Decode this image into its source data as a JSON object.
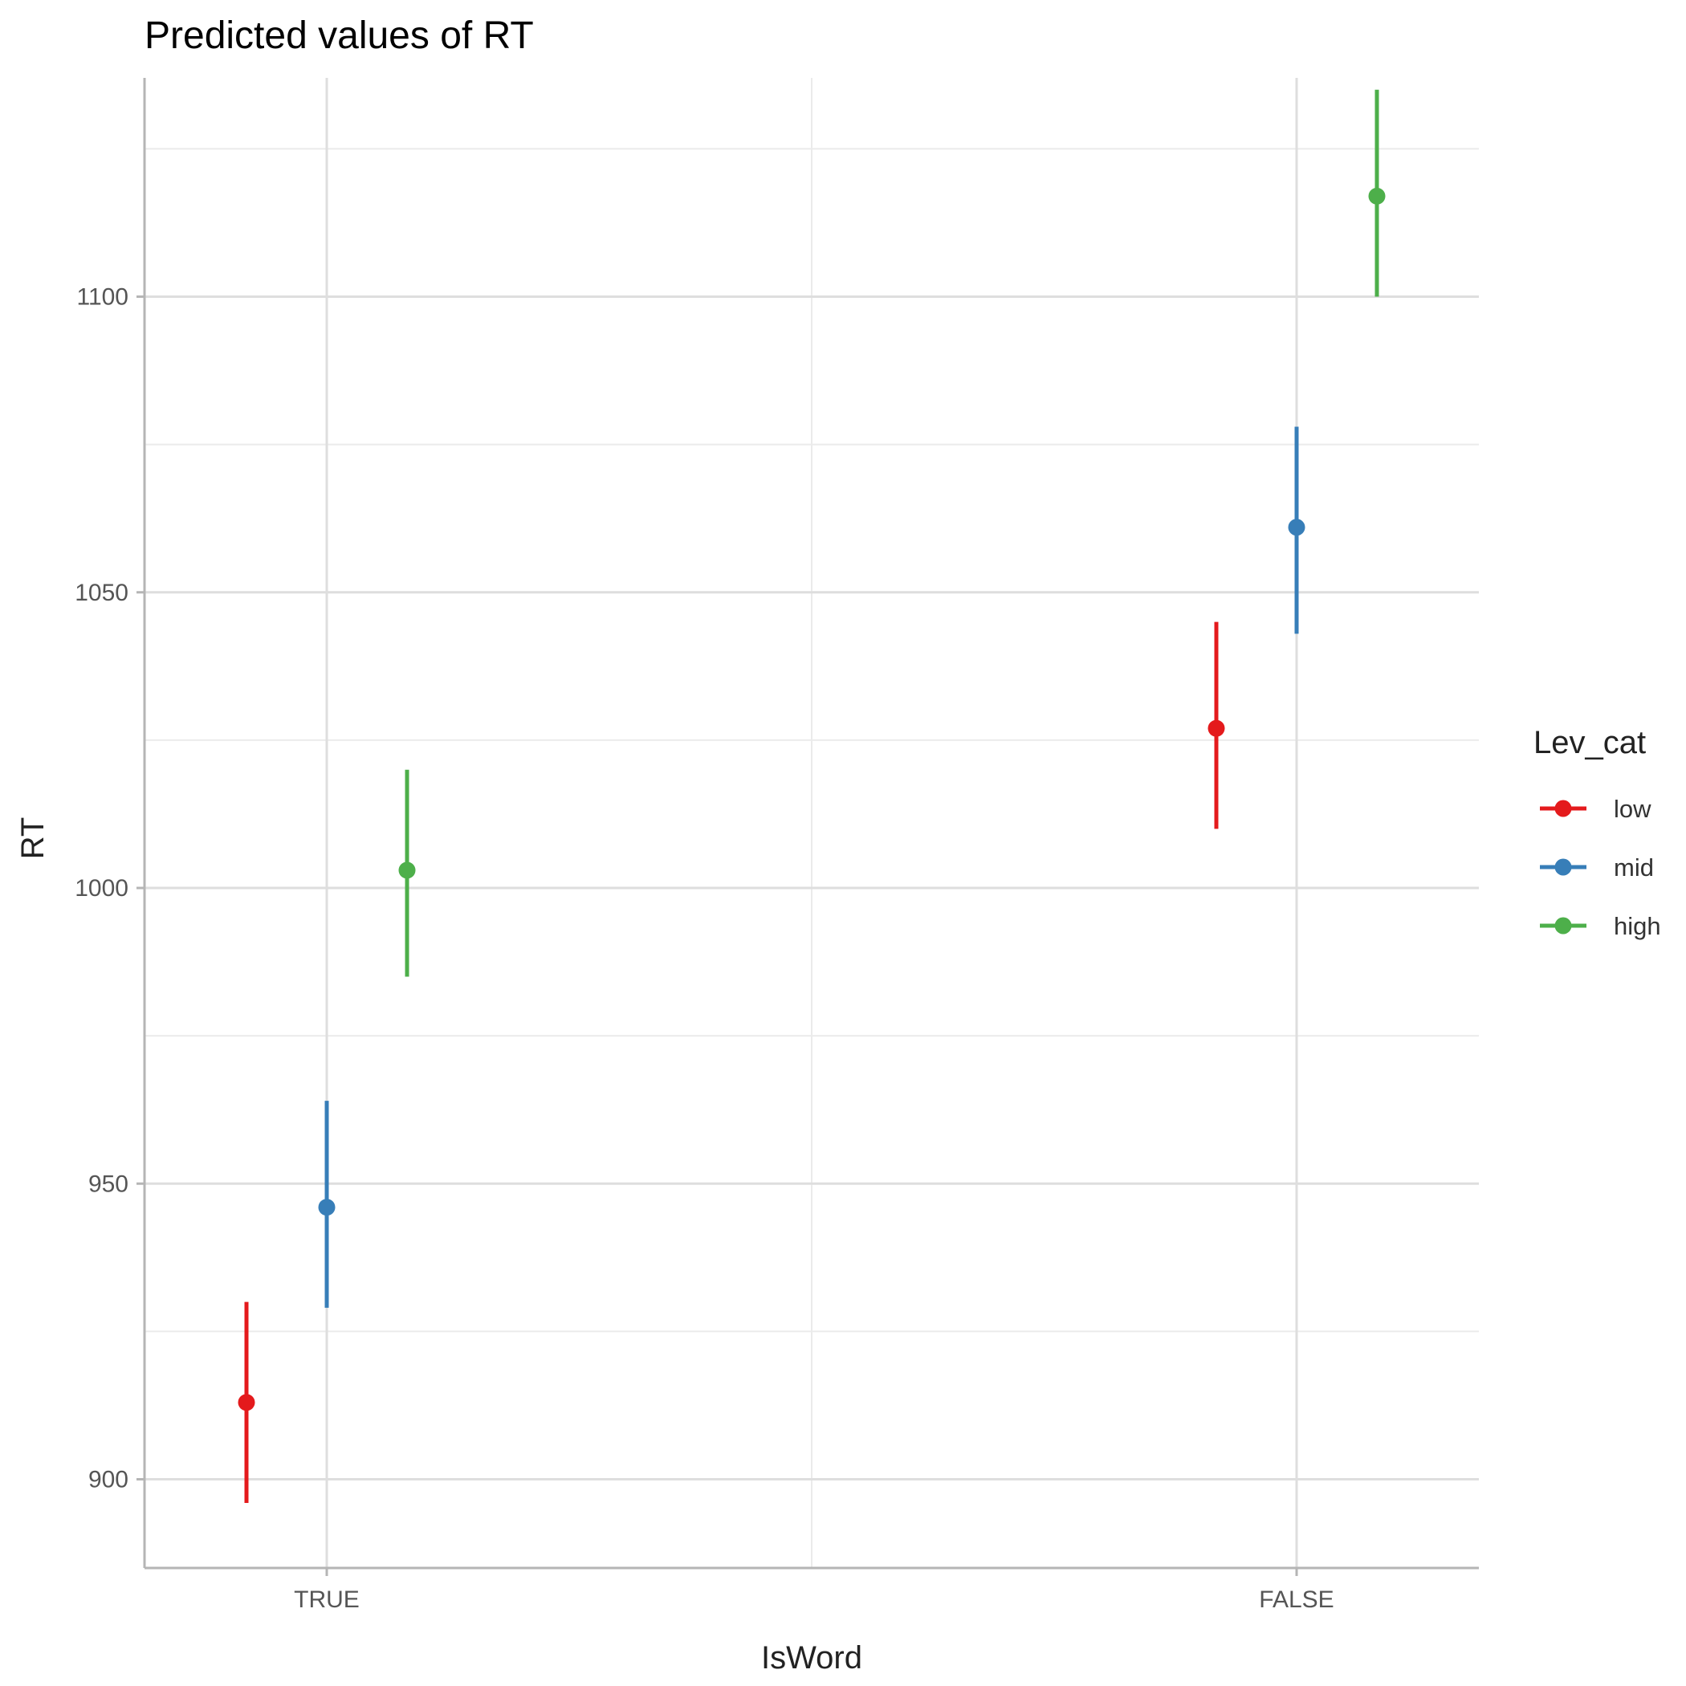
{
  "chart_data": {
    "type": "scatter",
    "title": "Predicted values of RT",
    "xlabel": "IsWord",
    "ylabel": "RT",
    "categories": [
      "TRUE",
      "FALSE"
    ],
    "y_ticks": [
      900,
      950,
      1000,
      1050,
      1100
    ],
    "ylim": [
      885,
      1137
    ],
    "grid": true,
    "legend": {
      "title": "Lev_cat",
      "position": "right"
    },
    "series": [
      {
        "name": "low",
        "color": "#E41A1C",
        "values": [
          913,
          1027
        ],
        "lower": [
          896,
          1010
        ],
        "upper": [
          930,
          1045
        ]
      },
      {
        "name": "mid",
        "color": "#377EB8",
        "values": [
          946,
          1061
        ],
        "lower": [
          929,
          1043
        ],
        "upper": [
          964,
          1078
        ]
      },
      {
        "name": "high",
        "color": "#4DAF4A",
        "values": [
          1003,
          1117
        ],
        "lower": [
          985,
          1100
        ],
        "upper": [
          1020,
          1135
        ]
      }
    ]
  }
}
